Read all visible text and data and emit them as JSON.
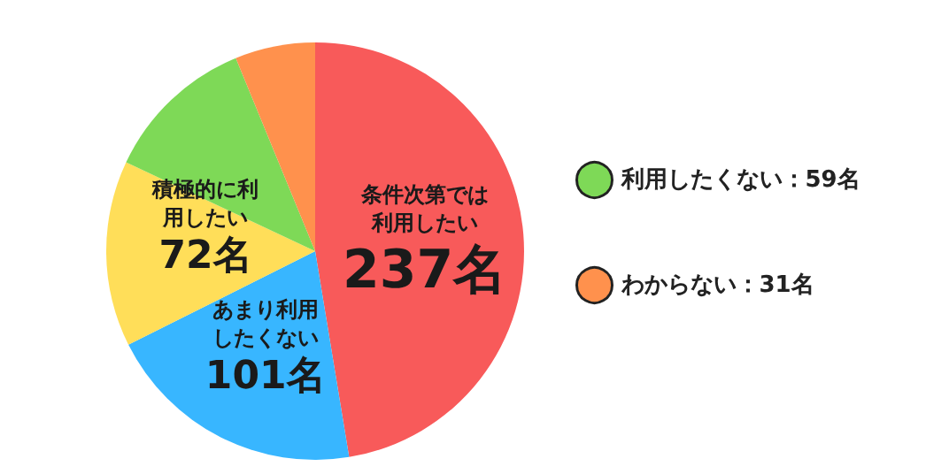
{
  "chart_data": {
    "type": "pie",
    "categories": [
      "条件次第では利用したい",
      "あまり利用したくない",
      "積極的に利用したい",
      "利用したくない",
      "わからない"
    ],
    "values": [
      237,
      101,
      72,
      59,
      31
    ],
    "colors": [
      "#f85a5a",
      "#38b6ff",
      "#ffde59",
      "#7ed957",
      "#ff914d"
    ],
    "value_labels": [
      "237名",
      "101名",
      "72名",
      "59名",
      "31名"
    ],
    "legend": "right"
  }
}
